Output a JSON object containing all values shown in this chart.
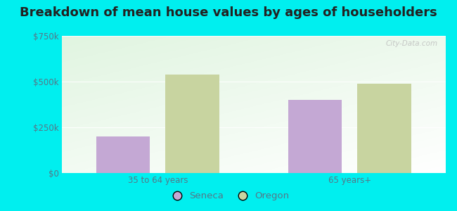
{
  "title": "Breakdown of mean house values by ages of householders",
  "categories": [
    "35 to 64 years",
    "65 years+"
  ],
  "seneca_values": [
    200000,
    400000
  ],
  "oregon_values": [
    540000,
    490000
  ],
  "seneca_color": "#c4a8d4",
  "oregon_color": "#c8d4a0",
  "background_color": "#00efef",
  "ylim": [
    0,
    750000
  ],
  "yticks": [
    0,
    250000,
    500000,
    750000
  ],
  "ytick_labels": [
    "$0",
    "$250k",
    "$500k",
    "$750k"
  ],
  "bar_width": 0.28,
  "legend_labels": [
    "Seneca",
    "Oregon"
  ],
  "watermark": "City-Data.com",
  "title_fontsize": 13,
  "tick_fontsize": 8.5,
  "legend_fontsize": 9.5,
  "tick_color": "#557788",
  "grid_color": "#cccccc"
}
